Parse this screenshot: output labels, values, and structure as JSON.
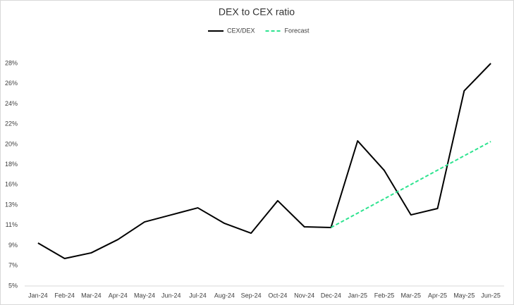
{
  "chart_data": {
    "type": "line",
    "title": "DEX to CEX ratio",
    "categories": [
      "Jan-24",
      "Feb-24",
      "Mar-24",
      "Apr-24",
      "May-24",
      "Jun-24",
      "Jul-24",
      "Aug-24",
      "Sep-24",
      "Oct-24",
      "Nov-24",
      "Dec-24",
      "Jan-25",
      "Feb-25",
      "Mar-25",
      "Apr-25",
      "May-25",
      "Jun-25"
    ],
    "series": [
      {
        "name": "CEX/DEX",
        "color": "#000000",
        "dashed": false,
        "values": [
          9.46,
          7.85,
          8.44,
          9.82,
          11.65,
          12.38,
          13.11,
          11.5,
          10.48,
          13.85,
          11.14,
          11.07,
          20.06,
          16.99,
          12.38,
          13.04,
          25.25,
          28.1
        ]
      },
      {
        "name": "Forecast",
        "color": "#2de38f",
        "dashed": true,
        "values": [
          null,
          null,
          null,
          null,
          null,
          null,
          null,
          null,
          null,
          null,
          null,
          11.07,
          12.56,
          14.05,
          15.53,
          17.02,
          18.51,
          19.99
        ]
      }
    ],
    "ylim": [
      5,
      28.1
    ],
    "yticks": [
      {
        "value": 5,
        "label": "5%"
      },
      {
        "value": 7.1,
        "label": "7%"
      },
      {
        "value": 9.2,
        "label": "9%"
      },
      {
        "value": 11.3,
        "label": "11%"
      },
      {
        "value": 13.4,
        "label": "13%"
      },
      {
        "value": 15.5,
        "label": "16%"
      },
      {
        "value": 17.6,
        "label": "18%"
      },
      {
        "value": 19.7,
        "label": "20%"
      },
      {
        "value": 21.8,
        "label": "22%"
      },
      {
        "value": 23.9,
        "label": "24%"
      },
      {
        "value": 26,
        "label": "26%"
      },
      {
        "value": 28.1,
        "label": "28%"
      }
    ],
    "grid": false,
    "legend": "top"
  }
}
